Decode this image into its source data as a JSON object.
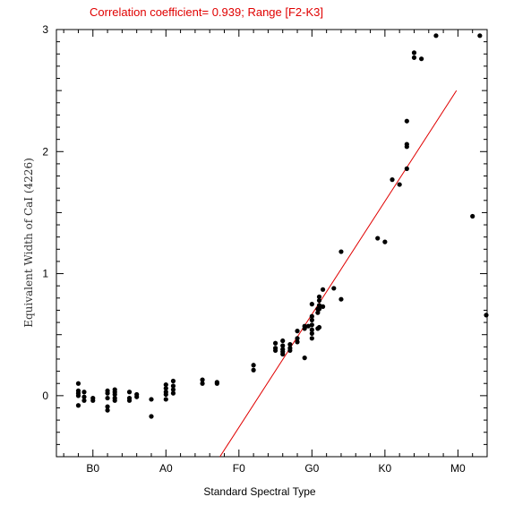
{
  "chart_data": {
    "type": "scatter",
    "title": "Correlation coefficient= 0.939; Range [F2-K3]",
    "xlabel": "Standard Spectral Type",
    "ylabel": "Equivalent Width of CaI (4226)",
    "xlim": [
      -5,
      54
    ],
    "ylim": [
      -0.5,
      3
    ],
    "x_ticks": [
      {
        "value": 0,
        "label": "B0"
      },
      {
        "value": 10,
        "label": "A0"
      },
      {
        "value": 20,
        "label": "F0"
      },
      {
        "value": 30,
        "label": "G0"
      },
      {
        "value": 40,
        "label": "K0"
      },
      {
        "value": 50,
        "label": "M0"
      }
    ],
    "y_ticks": [
      {
        "value": 0,
        "label": "0"
      },
      {
        "value": 1,
        "label": "1"
      },
      {
        "value": 2,
        "label": "2"
      },
      {
        "value": 3,
        "label": "3"
      }
    ],
    "points": [
      [
        -2.0,
        0.1
      ],
      [
        -2.0,
        0.04
      ],
      [
        -2.0,
        0.02
      ],
      [
        -2.0,
        0.0
      ],
      [
        -2.0,
        -0.08
      ],
      [
        -1.2,
        0.03
      ],
      [
        -1.2,
        -0.01
      ],
      [
        -1.2,
        -0.04
      ],
      [
        0.0,
        -0.02
      ],
      [
        0.0,
        -0.04
      ],
      [
        2.0,
        0.04
      ],
      [
        2.0,
        0.02
      ],
      [
        2.0,
        -0.02
      ],
      [
        2.0,
        -0.09
      ],
      [
        2.0,
        -0.12
      ],
      [
        3.0,
        0.05
      ],
      [
        3.0,
        0.03
      ],
      [
        3.0,
        0.01
      ],
      [
        3.0,
        -0.02
      ],
      [
        3.0,
        -0.04
      ],
      [
        5.0,
        0.03
      ],
      [
        5.0,
        -0.02
      ],
      [
        5.0,
        -0.04
      ],
      [
        6.0,
        0.01
      ],
      [
        6.0,
        -0.01
      ],
      [
        8.0,
        -0.03
      ],
      [
        8.0,
        -0.17
      ],
      [
        10.0,
        0.09
      ],
      [
        10.0,
        0.06
      ],
      [
        10.0,
        0.03
      ],
      [
        10.0,
        0.01
      ],
      [
        10.0,
        -0.03
      ],
      [
        11.0,
        0.12
      ],
      [
        11.0,
        0.08
      ],
      [
        11.0,
        0.05
      ],
      [
        11.0,
        0.02
      ],
      [
        15.0,
        0.13
      ],
      [
        15.0,
        0.1
      ],
      [
        17.0,
        0.11
      ],
      [
        17.0,
        0.1
      ],
      [
        22.0,
        0.25
      ],
      [
        22.0,
        0.21
      ],
      [
        25.0,
        0.43
      ],
      [
        25.0,
        0.39
      ],
      [
        25.0,
        0.37
      ],
      [
        26.0,
        0.45
      ],
      [
        26.0,
        0.41
      ],
      [
        26.0,
        0.38
      ],
      [
        26.0,
        0.36
      ],
      [
        26.0,
        0.34
      ],
      [
        27.0,
        0.42
      ],
      [
        27.0,
        0.39
      ],
      [
        27.0,
        0.37
      ],
      [
        28.0,
        0.53
      ],
      [
        28.0,
        0.47
      ],
      [
        28.0,
        0.44
      ],
      [
        29.0,
        0.57
      ],
      [
        29.0,
        0.55
      ],
      [
        29.0,
        0.31
      ],
      [
        29.5,
        0.57
      ],
      [
        30.0,
        0.75
      ],
      [
        30.0,
        0.65
      ],
      [
        30.0,
        0.62
      ],
      [
        30.0,
        0.58
      ],
      [
        30.0,
        0.54
      ],
      [
        30.0,
        0.51
      ],
      [
        30.0,
        0.47
      ],
      [
        30.8,
        0.71
      ],
      [
        30.8,
        0.68
      ],
      [
        30.8,
        0.55
      ],
      [
        31.0,
        0.81
      ],
      [
        31.0,
        0.78
      ],
      [
        31.0,
        0.74
      ],
      [
        31.0,
        0.71
      ],
      [
        31.0,
        0.56
      ],
      [
        31.5,
        0.87
      ],
      [
        31.5,
        0.73
      ],
      [
        33.0,
        0.88
      ],
      [
        34.0,
        1.18
      ],
      [
        34.0,
        0.79
      ],
      [
        39.0,
        1.29
      ],
      [
        40.0,
        1.26
      ],
      [
        41.0,
        1.77
      ],
      [
        42.0,
        1.73
      ],
      [
        43.0,
        2.25
      ],
      [
        43.0,
        2.06
      ],
      [
        43.0,
        2.04
      ],
      [
        43.0,
        1.86
      ],
      [
        44.0,
        2.81
      ],
      [
        44.0,
        2.77
      ],
      [
        45.0,
        2.76
      ],
      [
        47.0,
        2.95
      ],
      [
        52.0,
        1.47
      ],
      [
        53.0,
        2.95
      ],
      [
        54.0,
        0.66
      ]
    ],
    "fit_line": {
      "from": [
        17.4,
        -0.5
      ],
      "to": [
        49.8,
        2.5
      ]
    },
    "grid": false,
    "point_color": "#000000",
    "line_color": "#e00000",
    "title_color": "#e00000"
  }
}
